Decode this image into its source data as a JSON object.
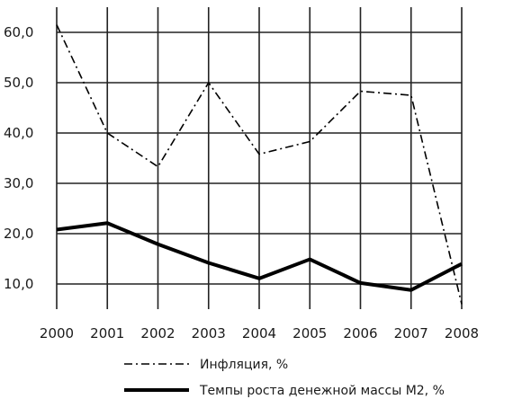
{
  "chart_data": {
    "type": "line",
    "x": [
      "2000",
      "2001",
      "2002",
      "2003",
      "2004",
      "2005",
      "2006",
      "2007",
      "2008"
    ],
    "series": [
      {
        "name": "Инфляция, %",
        "values": [
          61.5,
          40.0,
          33.3,
          50.0,
          35.8,
          38.3,
          48.3,
          47.5,
          6.0
        ],
        "style": "dash-dot",
        "color": "#000000"
      },
      {
        "name": "Темпы роста денежной массы М2, %",
        "values": [
          20.8,
          22.1,
          17.9,
          14.2,
          11.1,
          14.9,
          10.2,
          8.8,
          14.0
        ],
        "style": "solid-thick",
        "color": "#000000"
      }
    ],
    "yticks": [
      "10,0",
      "20,0",
      "30,0",
      "40,0",
      "50,0",
      "60,0"
    ],
    "ylim": [
      5,
      65
    ],
    "grid": true,
    "legend_position": "bottom"
  }
}
